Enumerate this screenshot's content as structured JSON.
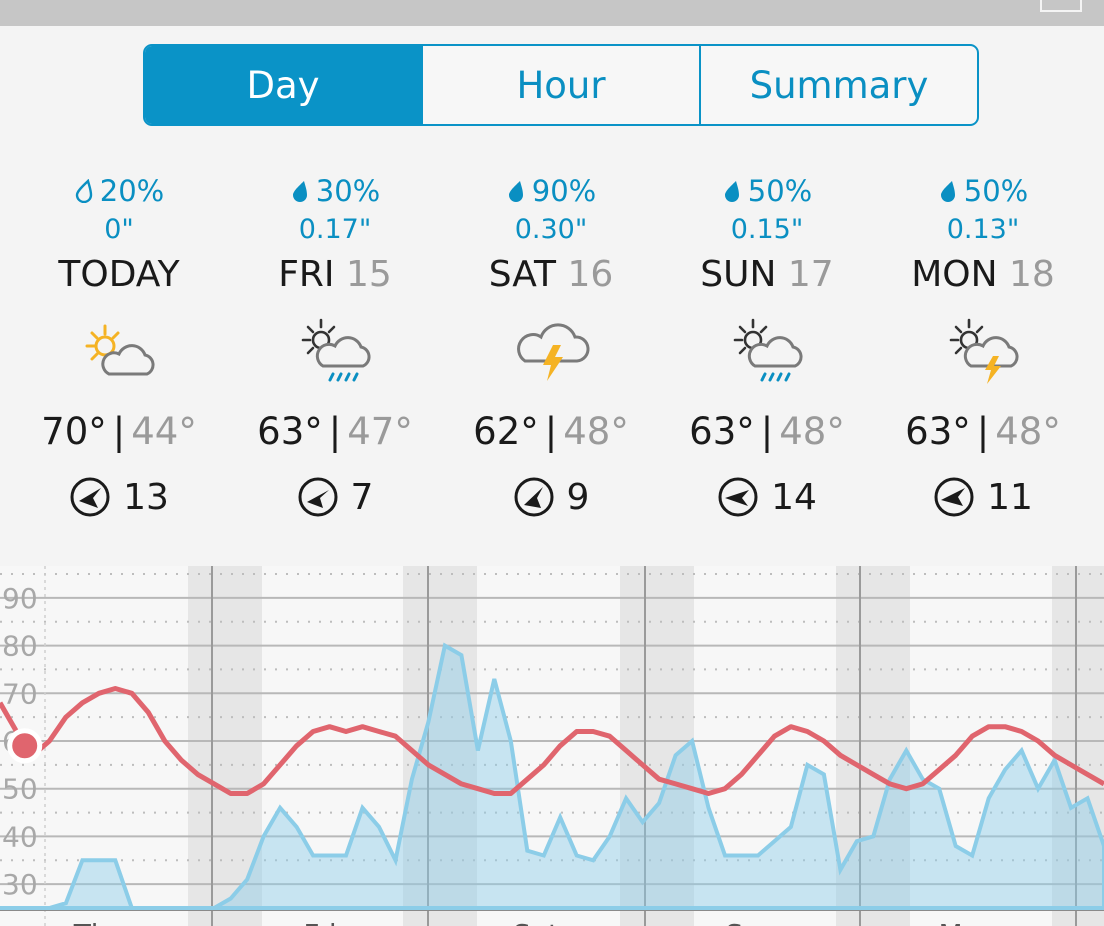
{
  "tabs": [
    {
      "label": "Day",
      "active": true
    },
    {
      "label": "Hour",
      "active": false
    },
    {
      "label": "Summary",
      "active": false
    }
  ],
  "days": [
    {
      "precip_pct": "20%",
      "amount": "0\"",
      "name": "TODAY",
      "date": "",
      "icon": "partly-sunny-icon",
      "high": "70°",
      "low": "44°",
      "wind": "13",
      "drop": "outline"
    },
    {
      "precip_pct": "30%",
      "amount": "0.17\"",
      "name": "FRI",
      "date": "15",
      "icon": "partly-cloudy-rain-icon",
      "high": "63°",
      "low": "47°",
      "wind": "7",
      "drop": "filled"
    },
    {
      "precip_pct": "90%",
      "amount": "0.30\"",
      "name": "SAT",
      "date": "16",
      "icon": "thunderstorm-icon",
      "high": "62°",
      "low": "48°",
      "wind": "9",
      "drop": "filled"
    },
    {
      "precip_pct": "50%",
      "amount": "0.15\"",
      "name": "SUN",
      "date": "17",
      "icon": "partly-cloudy-rain-icon",
      "high": "63°",
      "low": "48°",
      "wind": "14",
      "drop": "filled"
    },
    {
      "precip_pct": "50%",
      "amount": "0.13\"",
      "name": "MON",
      "date": "18",
      "icon": "partly-cloudy-thunder-icon",
      "high": "63°",
      "low": "48°",
      "wind": "11",
      "drop": "filled"
    }
  ],
  "chart_data": {
    "type": "line",
    "y_ticks": [
      "90",
      "80",
      "70",
      "60",
      "50",
      "40",
      "30"
    ],
    "ylim": [
      25,
      95
    ],
    "x_day_labels": [
      "Thu",
      "Fri",
      "Sat",
      "Sun",
      "Mon"
    ],
    "series": [
      {
        "color": "#e0656e",
        "values": [
          [
            0,
            68
          ],
          [
            1,
            62
          ],
          [
            2,
            57
          ],
          [
            3,
            60
          ],
          [
            4,
            65
          ],
          [
            5,
            68
          ],
          [
            6,
            70
          ],
          [
            7,
            71
          ],
          [
            8,
            70
          ],
          [
            9,
            66
          ],
          [
            10,
            60
          ],
          [
            11,
            56
          ],
          [
            12,
            53
          ],
          [
            13,
            51
          ],
          [
            14,
            49
          ],
          [
            15,
            49
          ],
          [
            16,
            51
          ],
          [
            17,
            55
          ],
          [
            18,
            59
          ],
          [
            19,
            62
          ],
          [
            20,
            63
          ],
          [
            21,
            62
          ],
          [
            22,
            63
          ],
          [
            23,
            62
          ],
          [
            24,
            61
          ],
          [
            25,
            58
          ],
          [
            26,
            55
          ],
          [
            27,
            53
          ],
          [
            28,
            51
          ],
          [
            29,
            50
          ],
          [
            30,
            49
          ],
          [
            31,
            49
          ],
          [
            32,
            52
          ],
          [
            33,
            55
          ],
          [
            34,
            59
          ],
          [
            35,
            62
          ],
          [
            36,
            62
          ],
          [
            37,
            61
          ],
          [
            38,
            58
          ],
          [
            39,
            55
          ],
          [
            40,
            52
          ],
          [
            41,
            51
          ],
          [
            42,
            50
          ],
          [
            43,
            49
          ],
          [
            44,
            50
          ],
          [
            45,
            53
          ],
          [
            46,
            57
          ],
          [
            47,
            61
          ],
          [
            48,
            63
          ],
          [
            49,
            62
          ],
          [
            50,
            60
          ],
          [
            51,
            57
          ],
          [
            52,
            55
          ],
          [
            53,
            53
          ],
          [
            54,
            51
          ],
          [
            55,
            50
          ],
          [
            56,
            51
          ],
          [
            57,
            54
          ],
          [
            58,
            57
          ],
          [
            59,
            61
          ],
          [
            60,
            63
          ],
          [
            61,
            63
          ],
          [
            62,
            62
          ],
          [
            63,
            60
          ],
          [
            64,
            57
          ],
          [
            65,
            55
          ],
          [
            66,
            53
          ],
          [
            67,
            51
          ]
        ]
      },
      {
        "color": "#8ccde8",
        "values": [
          [
            0,
            25
          ],
          [
            1,
            25
          ],
          [
            2,
            25
          ],
          [
            3,
            25
          ],
          [
            4,
            26
          ],
          [
            5,
            35
          ],
          [
            6,
            35
          ],
          [
            7,
            35
          ],
          [
            8,
            25
          ],
          [
            9,
            25
          ],
          [
            10,
            25
          ],
          [
            11,
            25
          ],
          [
            12,
            25
          ],
          [
            13,
            25
          ],
          [
            14,
            27
          ],
          [
            15,
            31
          ],
          [
            16,
            40
          ],
          [
            17,
            46
          ],
          [
            18,
            42
          ],
          [
            19,
            36
          ],
          [
            20,
            36
          ],
          [
            21,
            36
          ],
          [
            22,
            46
          ],
          [
            23,
            42
          ],
          [
            24,
            35
          ],
          [
            25,
            52
          ],
          [
            26,
            64
          ],
          [
            27,
            80
          ],
          [
            28,
            78
          ],
          [
            29,
            58
          ],
          [
            30,
            73
          ],
          [
            31,
            60
          ],
          [
            32,
            37
          ],
          [
            33,
            36
          ],
          [
            34,
            44
          ],
          [
            35,
            36
          ],
          [
            36,
            35
          ],
          [
            37,
            40
          ],
          [
            38,
            48
          ],
          [
            39,
            43
          ],
          [
            40,
            47
          ],
          [
            41,
            57
          ],
          [
            42,
            60
          ],
          [
            43,
            46
          ],
          [
            44,
            36
          ],
          [
            45,
            36
          ],
          [
            46,
            36
          ],
          [
            47,
            39
          ],
          [
            48,
            42
          ],
          [
            49,
            55
          ],
          [
            50,
            53
          ],
          [
            51,
            33
          ],
          [
            52,
            39
          ],
          [
            53,
            40
          ],
          [
            54,
            52
          ],
          [
            55,
            58
          ],
          [
            56,
            52
          ],
          [
            57,
            50
          ],
          [
            58,
            38
          ],
          [
            59,
            36
          ],
          [
            60,
            48
          ],
          [
            61,
            54
          ],
          [
            62,
            58
          ],
          [
            63,
            50
          ],
          [
            64,
            56
          ],
          [
            65,
            46
          ],
          [
            66,
            48
          ],
          [
            67,
            38
          ]
        ]
      }
    ],
    "current_point": [
      1.5,
      59
    ]
  }
}
